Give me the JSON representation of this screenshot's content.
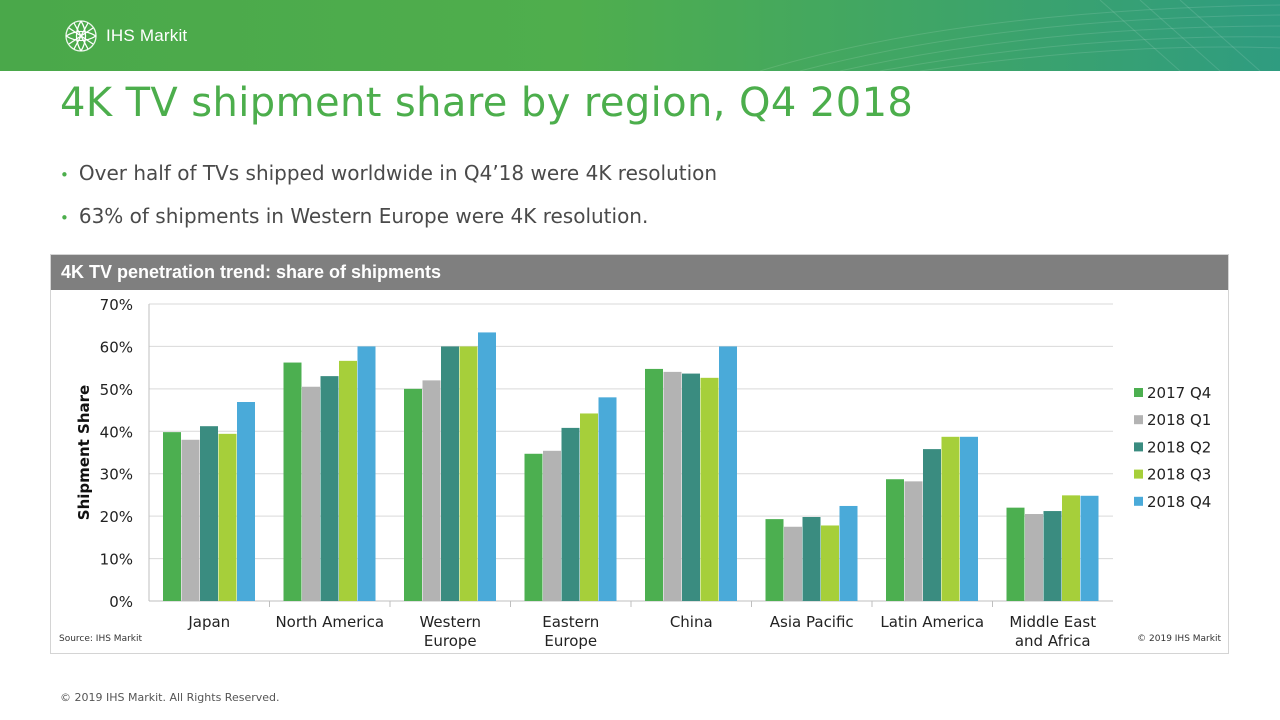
{
  "header": {
    "logo_text": "IHS Markit"
  },
  "title": "4K TV shipment share by region, Q4 2018",
  "bullets": [
    "Over half of TVs shipped worldwide in Q4’18 were 4K resolution",
    "63% of shipments in Western Europe were 4K resolution."
  ],
  "chart_box": {
    "title": "4K TV penetration trend: share of shipments"
  },
  "chart_data": {
    "type": "bar",
    "title": "4K TV penetration trend: share of shipments",
    "ylabel": "Shipment Share",
    "xlabel": "",
    "ylim": [
      0,
      70
    ],
    "yticks": [
      "0%",
      "10%",
      "20%",
      "30%",
      "40%",
      "50%",
      "60%",
      "70%"
    ],
    "categories": [
      [
        "Japan"
      ],
      [
        "North America"
      ],
      [
        "Western",
        "Europe"
      ],
      [
        "Eastern",
        "Europe"
      ],
      [
        "China"
      ],
      [
        "Asia Pacific"
      ],
      [
        "Latin America"
      ],
      [
        "Middle East",
        "and Africa"
      ]
    ],
    "series": [
      {
        "name": "2017 Q4",
        "color": "#4caf50",
        "values": [
          39.8,
          56.2,
          50.0,
          34.7,
          54.7,
          19.3,
          28.7,
          22.0
        ]
      },
      {
        "name": "2018 Q1",
        "color": "#b3b3b3",
        "values": [
          38.0,
          50.5,
          52.0,
          35.4,
          54.0,
          17.5,
          28.2,
          20.5
        ]
      },
      {
        "name": "2018 Q2",
        "color": "#3a8c80",
        "values": [
          41.2,
          53.0,
          60.0,
          40.8,
          53.6,
          19.8,
          35.8,
          21.2
        ]
      },
      {
        "name": "2018 Q3",
        "color": "#a6cf3a",
        "values": [
          39.4,
          56.6,
          60.0,
          44.2,
          52.6,
          17.8,
          38.7,
          24.9
        ]
      },
      {
        "name": "2018 Q4",
        "color": "#4aaad9",
        "values": [
          46.9,
          60.0,
          63.3,
          48.0,
          60.0,
          22.4,
          38.7,
          24.8
        ]
      }
    ],
    "grid": true,
    "legend_position": "right"
  },
  "source_note": "Source: IHS Markit",
  "chart_copyright": "© 2019 IHS Markit",
  "footer": "© 2019 IHS Markit. All Rights Reserved."
}
